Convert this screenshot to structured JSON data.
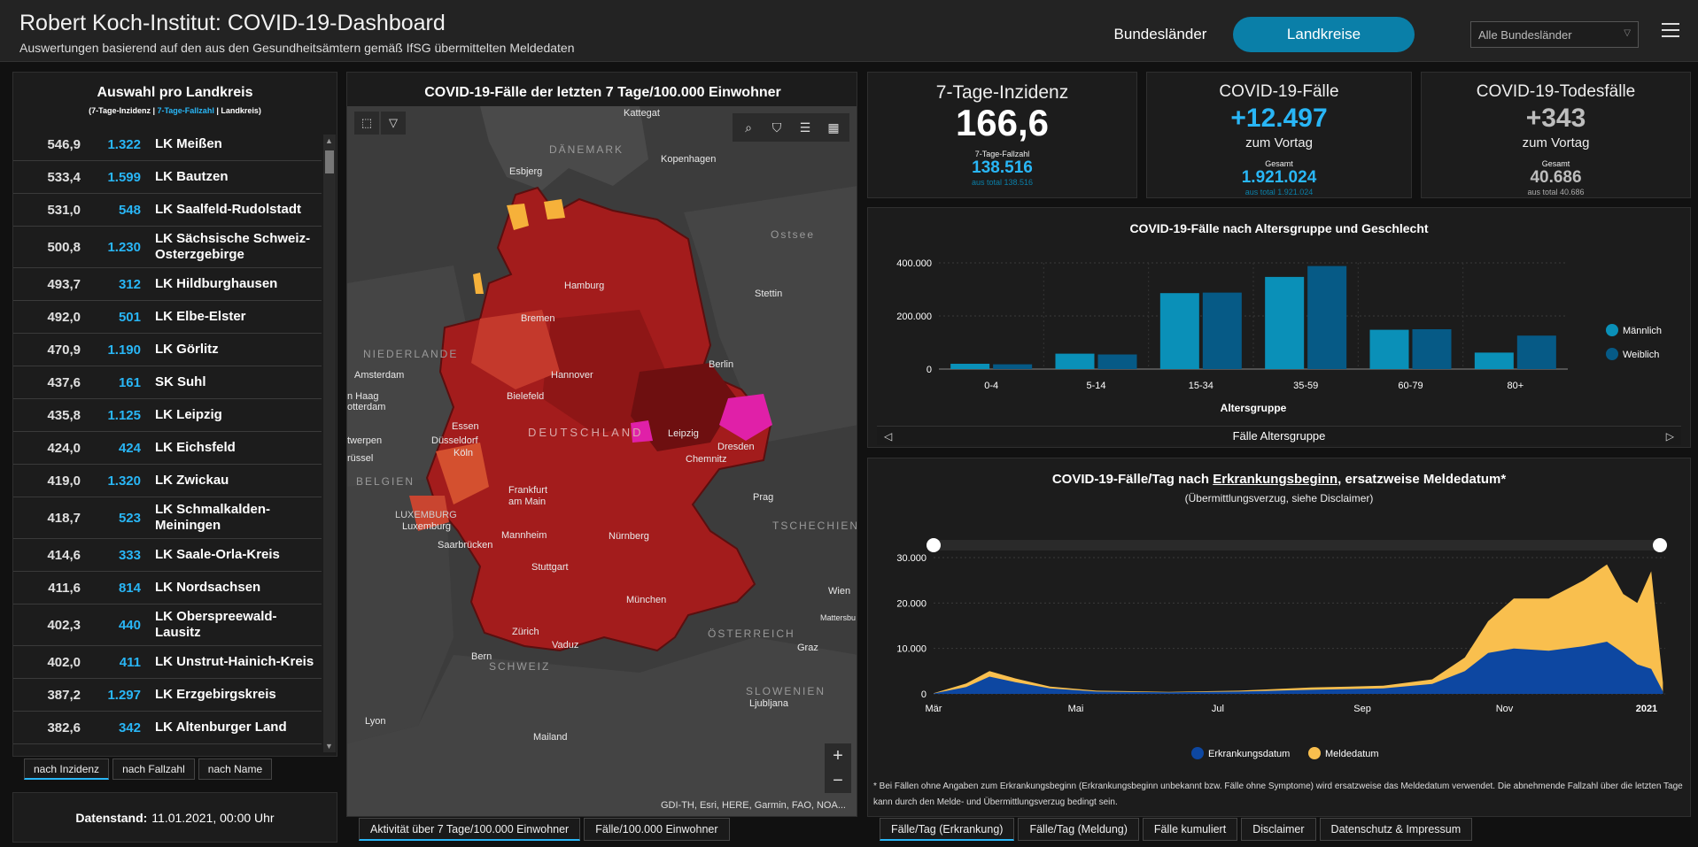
{
  "header": {
    "title": "Robert Koch-Institut: COVID-19-Dashboard",
    "subtitle": "Auswertungen basierend auf den aus den Gesundheitsämtern gemäß IfSG übermittelten Meldedaten",
    "btn_bundeslaender": "Bundesländer",
    "btn_landkreise": "Landkreise",
    "select_value": "Alle Bundesländer",
    "accent": "#0a7fa8"
  },
  "left": {
    "title": "Auswahl pro Landkreis",
    "legend_a": "(7-Tage-Inzidenz | ",
    "legend_b": "7-Tage-Fallzahl",
    "legend_c": " | Landkreis)",
    "rows": [
      {
        "inc": "546,9",
        "fz": "1.322",
        "name": "LK Meißen"
      },
      {
        "inc": "533,4",
        "fz": "1.599",
        "name": "LK Bautzen"
      },
      {
        "inc": "531,0",
        "fz": "548",
        "name": "LK Saalfeld-Rudolstadt"
      },
      {
        "inc": "500,8",
        "fz": "1.230",
        "name": "LK Sächsische Schweiz-Osterzgebirge"
      },
      {
        "inc": "493,7",
        "fz": "312",
        "name": "LK Hildburghausen"
      },
      {
        "inc": "492,0",
        "fz": "501",
        "name": "LK Elbe-Elster"
      },
      {
        "inc": "470,9",
        "fz": "1.190",
        "name": "LK Görlitz"
      },
      {
        "inc": "437,6",
        "fz": "161",
        "name": "SK Suhl"
      },
      {
        "inc": "435,8",
        "fz": "1.125",
        "name": "LK Leipzig"
      },
      {
        "inc": "424,0",
        "fz": "424",
        "name": "LK Eichsfeld"
      },
      {
        "inc": "419,0",
        "fz": "1.320",
        "name": "LK Zwickau"
      },
      {
        "inc": "418,7",
        "fz": "523",
        "name": "LK Schmalkalden-Meiningen"
      },
      {
        "inc": "414,6",
        "fz": "333",
        "name": "LK Saale-Orla-Kreis"
      },
      {
        "inc": "411,6",
        "fz": "814",
        "name": "LK Nordsachsen"
      },
      {
        "inc": "402,3",
        "fz": "440",
        "name": "LK Oberspreewald-Lausitz"
      },
      {
        "inc": "402,0",
        "fz": "411",
        "name": "LK Unstrut-Hainich-Kreis"
      },
      {
        "inc": "387,2",
        "fz": "1.297",
        "name": "LK Erzgebirgskreis"
      },
      {
        "inc": "382,6",
        "fz": "342",
        "name": "LK Altenburger Land"
      }
    ],
    "sort_buttons": [
      "nach Inzidenz",
      "nach Fallzahl",
      "nach Name"
    ],
    "datenstand_label": "Datenstand:",
    "datenstand_value": "11.01.2021, 00:00 Uhr"
  },
  "map": {
    "title": "COVID-19-Fälle der letzten 7 Tage/100.000 Einwohner",
    "attribution": "GDI-TH, Esri, HERE, Garmin, FAO, NOA...",
    "tabs": [
      "Aktivität über 7 Tage/100.000 Einwohner",
      "Fälle/100.000 Einwohner"
    ],
    "labels": {
      "kattegat": "Kattegat",
      "daenemark": "DÄNEMARK",
      "kopenhagen": "Kopenhagen",
      "esbjerg": "Esbjerg",
      "ostsee": "Ostsee",
      "hamburg": "Hamburg",
      "stettin": "Stettin",
      "bremen": "Bremen",
      "niederlande": "NIEDERLANDE",
      "amsterdam": "Amsterdam",
      "denhaag": "n Haag",
      "rotterdam": "otterdam",
      "hannover": "Hannover",
      "berlin": "Berlin",
      "bielefeld": "Bielefeld",
      "deutschland": "DEUTSCHLAND",
      "essen": "Essen",
      "duesseldorf": "Düsseldorf",
      "leipzig": "Leipzig",
      "dresden": "Dresden",
      "antwerpen": "twerpen",
      "koeln": "Köln",
      "chemnitz": "Chemnitz",
      "bruessel": "rüssel",
      "belgien": "BELGIEN",
      "frankfurt": "Frankfurt am Main",
      "prag": "Prag",
      "luxemburg_c": "LUXEMBURG",
      "luxemburg": "Luxemburg",
      "tschechien": "TSCHECHIEN",
      "saarbruecken": "Saarbrücken",
      "mannheim": "Mannheim",
      "nuernberg": "Nürnberg",
      "stuttgart": "Stuttgart",
      "muenchen": "München",
      "wien": "Wien",
      "mattersburg": "Mattersbu",
      "oesterreich": "ÖSTERREICH",
      "zuerich": "Zürich",
      "vaduz": "Vaduz",
      "graz": "Graz",
      "bern": "Bern",
      "schweiz": "SCHWEIZ",
      "slowenien": "SLOWENIEN",
      "ljubljana": "Ljubljana",
      "lyon": "Lyon",
      "mailand": "Mailand"
    }
  },
  "kpi": {
    "inzidenz": {
      "title": "7-Tage-Inzidenz",
      "value": "166,6",
      "sub_label": "7-Tage-Fallzahl",
      "sub_value": "138.516",
      "sub_total": "aus total 138.516"
    },
    "faelle": {
      "title": "COVID-19-Fälle",
      "value": "+12.497",
      "delta_label": "zum Vortag",
      "sub_label": "Gesamt",
      "sub_value": "1.921.024",
      "sub_total": "aus total 1.921.024"
    },
    "tode": {
      "title": "COVID-19-Todesfälle",
      "value": "+343",
      "delta_label": "zum Vortag",
      "sub_label": "Gesamt",
      "sub_value": "40.686",
      "sub_total": "aus total 40.686"
    }
  },
  "age_chart": {
    "title": "COVID-19-Fälle nach Altersgruppe und Geschlecht",
    "nav_label": "Fälle Altersgruppe"
  },
  "epi_chart": {
    "title_pre": "COVID-19-Fälle/Tag nach ",
    "title_u": "Erkrankungsbeginn",
    "title_post": ", ersatzweise Meldedatum*",
    "subtitle": "(Übermittlungsverzug, siehe Disclaimer)",
    "disclaimer": "* Bei Fällen ohne Angaben zum Erkrankungsbeginn (Erkrankungsbeginn unbekannt bzw. Fälle ohne Symptome) wird ersatzweise das Meldedatum verwendet. Die abnehmende Fallzahl über die letzten Tage kann durch den Melde- und Übermittlungsverzug bedingt sein."
  },
  "bottom_tabs": [
    "Fälle/Tag (Erkrankung)",
    "Fälle/Tag (Meldung)",
    "Fälle kumuliert",
    "Disclaimer",
    "Datenschutz & Impressum"
  ],
  "chart_data": [
    {
      "type": "bar",
      "title": "COVID-19-Fälle nach Altersgruppe und Geschlecht",
      "xlabel": "Altersgruppe",
      "ylabel": "",
      "categories": [
        "0-4",
        "5-14",
        "15-34",
        "35-59",
        "60-79",
        "80+"
      ],
      "series": [
        {
          "name": "Männlich",
          "color": "#0a90b8",
          "values": [
            20000,
            58000,
            286000,
            347000,
            148000,
            62000
          ]
        },
        {
          "name": "Weiblich",
          "color": "#065a86",
          "values": [
            18000,
            55000,
            288000,
            388000,
            150000,
            126000
          ]
        }
      ],
      "ylim": [
        0,
        400000
      ],
      "yticks": [
        "0",
        "200.000",
        "400.000"
      ],
      "legend": "right",
      "grid": true
    },
    {
      "type": "area",
      "title": "COVID-19-Fälle/Tag nach Erkrankungsbeginn, ersatzweise Meldedatum*",
      "xlabel": "",
      "ylabel": "",
      "xticks": [
        "Mär",
        "Mai",
        "Jul",
        "Sep",
        "Nov",
        "2021"
      ],
      "yticks": [
        "0",
        "10.000",
        "20.000",
        "30.000"
      ],
      "ylim": [
        0,
        30000
      ],
      "legend": "bottom",
      "series": [
        {
          "name": "Erkrankungsdatum",
          "color": "#0d47a1",
          "x": [
            "2020-03-01",
            "2020-03-15",
            "2020-03-25",
            "2020-04-05",
            "2020-04-20",
            "2020-05-10",
            "2020-06-10",
            "2020-07-10",
            "2020-08-10",
            "2020-09-10",
            "2020-10-01",
            "2020-10-15",
            "2020-10-25",
            "2020-11-05",
            "2020-11-20",
            "2020-12-05",
            "2020-12-15",
            "2020-12-22",
            "2020-12-28",
            "2021-01-03",
            "2021-01-08"
          ],
          "values": [
            100,
            1500,
            3800,
            2600,
            1200,
            500,
            350,
            500,
            900,
            1200,
            2200,
            5000,
            9000,
            10000,
            9500,
            10500,
            11500,
            9000,
            6500,
            5500,
            500
          ]
        },
        {
          "name": "Meldedatum",
          "color": "#f9bf4e",
          "x": [
            "2020-03-01",
            "2020-03-15",
            "2020-03-25",
            "2020-04-05",
            "2020-04-20",
            "2020-05-10",
            "2020-06-10",
            "2020-07-10",
            "2020-08-10",
            "2020-09-10",
            "2020-10-01",
            "2020-10-15",
            "2020-10-25",
            "2020-11-05",
            "2020-11-20",
            "2020-12-05",
            "2020-12-15",
            "2020-12-22",
            "2020-12-28",
            "2021-01-03",
            "2021-01-08"
          ],
          "values": [
            150,
            2300,
            5000,
            3400,
            1600,
            700,
            450,
            700,
            1400,
            1800,
            3200,
            8000,
            16000,
            21000,
            21000,
            25000,
            28500,
            22000,
            20000,
            27000,
            2500
          ]
        }
      ]
    }
  ]
}
